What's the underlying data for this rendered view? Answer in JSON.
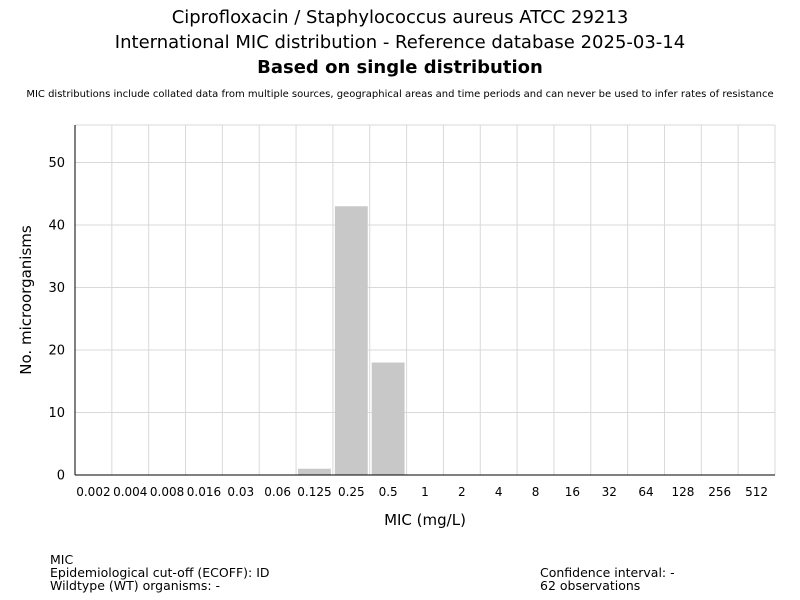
{
  "chart_data": {
    "type": "bar",
    "title": "Ciprofloxacin / Staphylococcus aureus ATCC 29213",
    "subtitle": "International MIC distribution - Reference database 2025-03-14",
    "subtitle2": "Based on single distribution",
    "note": "MIC distributions include collated data from multiple sources, geographical areas and time periods and can never be used to infer rates of resistance",
    "xlabel": "MIC (mg/L)",
    "ylabel": "No. microorganisms",
    "categories": [
      "0.002",
      "0.004",
      "0.008",
      "0.016",
      "0.03",
      "0.06",
      "0.125",
      "0.25",
      "0.5",
      "1",
      "2",
      "4",
      "8",
      "16",
      "32",
      "64",
      "128",
      "256",
      "512"
    ],
    "values": [
      0,
      0,
      0,
      0,
      0,
      0,
      1,
      43,
      18,
      0,
      0,
      0,
      0,
      0,
      0,
      0,
      0,
      0,
      0
    ],
    "ylim": [
      0,
      56
    ],
    "yticks": [
      0,
      10,
      20,
      30,
      40,
      50
    ],
    "grid": true,
    "bar_color": "#c8c8c8",
    "grid_color": "#d9d9d9",
    "axis_color": "#000000"
  },
  "footer": {
    "left": {
      "line1": "MIC",
      "line2": "Epidemiological cut-off (ECOFF): ID",
      "line3": "Wildtype (WT) organisms:  -"
    },
    "right": {
      "line1": "Confidence interval: -",
      "line2": "62 observations"
    }
  }
}
